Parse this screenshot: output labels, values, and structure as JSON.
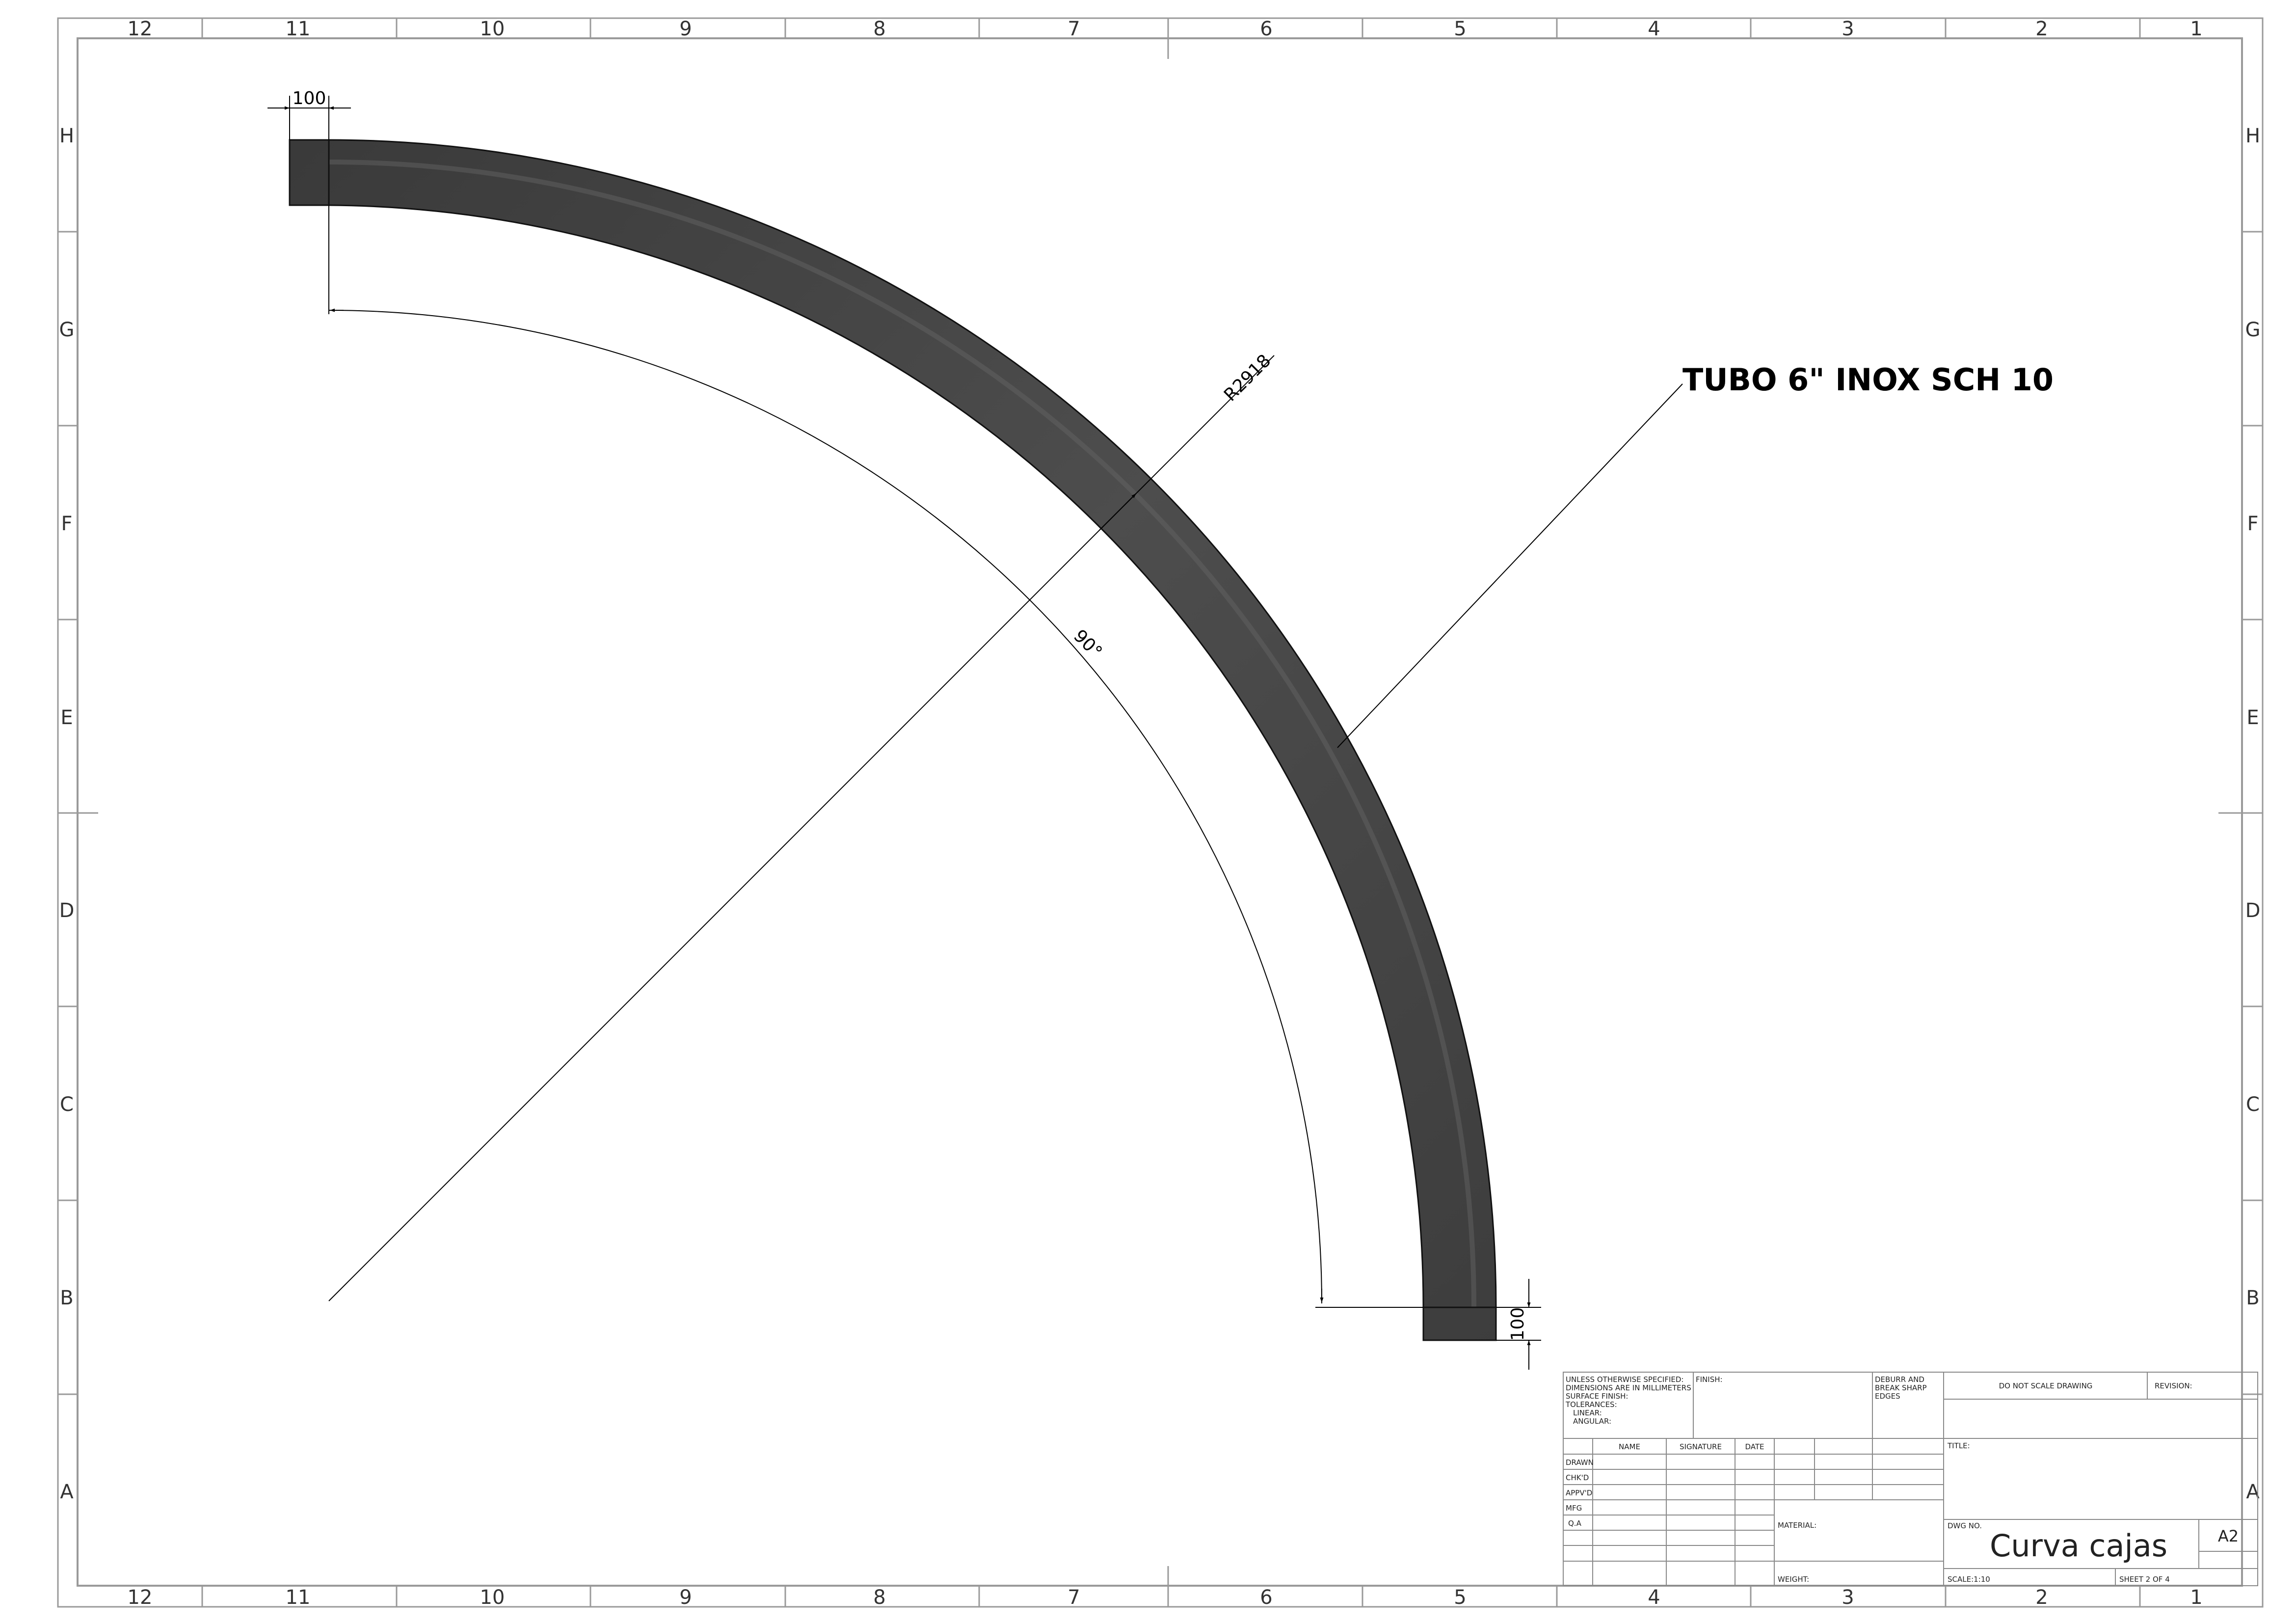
{
  "frame": {
    "columns_top": [
      "12",
      "11",
      "10",
      "9",
      "8",
      "7",
      "6",
      "5",
      "4",
      "3",
      "2",
      "1"
    ],
    "columns_bottom": [
      "12",
      "11",
      "10",
      "9",
      "8",
      "7",
      "6",
      "5",
      "4",
      "3",
      "2",
      "1"
    ],
    "rows_left": [
      "H",
      "G",
      "F",
      "E",
      "D",
      "C",
      "B",
      "A"
    ],
    "rows_right": [
      "H",
      "G",
      "F",
      "E",
      "D",
      "C",
      "B",
      "A"
    ]
  },
  "drawing": {
    "dim_top": "100",
    "dim_right": "100",
    "dim_radius": "R2918",
    "dim_angle": "90°",
    "callout": "TUBO 6\" INOX SCH 10",
    "pipe_color": "#4a4a4a"
  },
  "title_block": {
    "unless": [
      "UNLESS OTHERWISE SPECIFIED:",
      "DIMENSIONS ARE IN MILLIMETERS",
      "SURFACE FINISH:",
      "TOLERANCES:",
      "LINEAR:",
      "ANGULAR:"
    ],
    "finish": "FINISH:",
    "deburr": [
      "DEBURR AND",
      "BREAK SHARP",
      "EDGES"
    ],
    "do_not_scale": "DO NOT SCALE DRAWING",
    "revision": "REVISION:",
    "col_name": "NAME",
    "col_signature": "SIGNATURE",
    "col_date": "DATE",
    "rows": [
      "DRAWN",
      "CHK'D",
      "APPV'D",
      "MFG",
      "Q.A"
    ],
    "title_label": "TITLE:",
    "material": "MATERIAL:",
    "weight": "WEIGHT:",
    "dwg_no_label": "DWG NO.",
    "dwg_name": "Curva cajas",
    "size": "A2",
    "scale": "SCALE:1:10",
    "sheet": "SHEET 2 OF 4"
  }
}
